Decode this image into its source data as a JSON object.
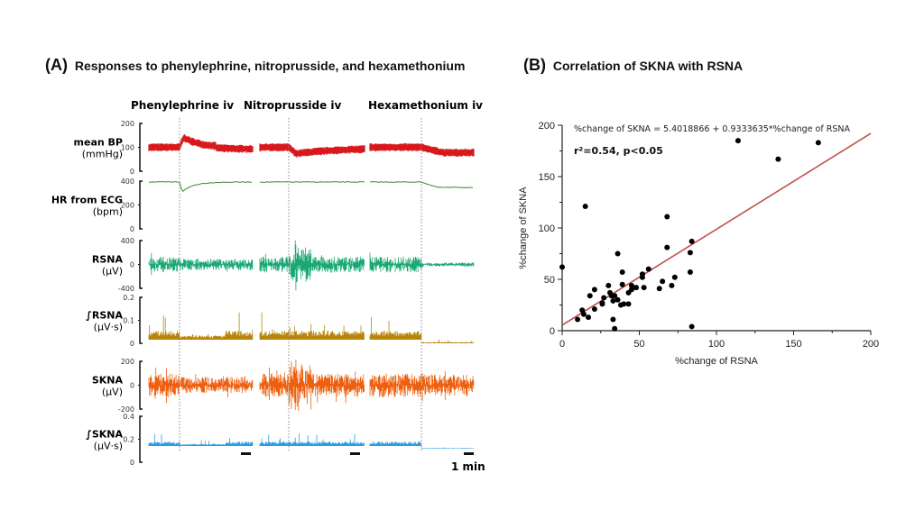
{
  "panelA": {
    "letter": "(A)",
    "title": "Responses to phenylephrine, nitroprusside, and hexamethonium",
    "conditions": [
      "Phenylephrine iv",
      "Nitroprusside iv",
      "Hexamethonium iv"
    ],
    "scale_bar_label": "1 min",
    "traces": [
      {
        "name": "mean BP",
        "unit": "(mmHg)",
        "ticks": [
          "200",
          "100",
          "0"
        ],
        "color": "#d7191c"
      },
      {
        "name": "HR from ECG",
        "unit": "(bpm)",
        "ticks": [
          "400",
          "200",
          "0"
        ],
        "color": "#3a8a2e"
      },
      {
        "name": "RSNA",
        "unit": "(µV)",
        "ticks": [
          "400",
          "0",
          "-400"
        ],
        "color": "#1aa874"
      },
      {
        "name": "∫RSNA",
        "unit": "(µV·s)",
        "ticks": [
          "0.2",
          "0.1",
          "0"
        ],
        "color": "#b8860b"
      },
      {
        "name": "SKNA",
        "unit": "(µV)",
        "ticks": [
          "200",
          "0",
          "-200"
        ],
        "color": "#ee6010"
      },
      {
        "name": "∫SKNA",
        "unit": "(µV·s)",
        "ticks": [
          "0.4",
          "0.2",
          "0"
        ],
        "color": "#2a9de0"
      }
    ]
  },
  "panelB": {
    "letter": "(B)",
    "title": "Correlation of SKNA with RSNA"
  },
  "chart_data": {
    "type": "scatter",
    "title": "Correlation of SKNA with RSNA",
    "xlabel": "%change of RSNA",
    "ylabel": "%change of SKNA",
    "xlim": [
      0,
      200
    ],
    "ylim": [
      0,
      200
    ],
    "xticks": [
      "0",
      "50",
      "100",
      "150",
      "200"
    ],
    "yticks": [
      "0",
      "50",
      "100",
      "150",
      "200"
    ],
    "regression_equation": "%change of SKNA = 5.4018866 + 0.9333635*%change of RSNA",
    "regression": {
      "intercept": 5.4018866,
      "slope": 0.9333635,
      "color": "#c0504d"
    },
    "stats_label": "r²=0.54, p<0.05",
    "point_color": "#000000",
    "points": [
      [
        0,
        62
      ],
      [
        15,
        121
      ],
      [
        114,
        185
      ],
      [
        140,
        167
      ],
      [
        166,
        183
      ],
      [
        68,
        111
      ],
      [
        84,
        87
      ],
      [
        68,
        81
      ],
      [
        83,
        76
      ],
      [
        36,
        75
      ],
      [
        83,
        57
      ],
      [
        84,
        4
      ],
      [
        10,
        11
      ],
      [
        14,
        16
      ],
      [
        13,
        20
      ],
      [
        17,
        13
      ],
      [
        18,
        34
      ],
      [
        21,
        21
      ],
      [
        21,
        40
      ],
      [
        26,
        26
      ],
      [
        27,
        32
      ],
      [
        26,
        27
      ],
      [
        31,
        37
      ],
      [
        30,
        44
      ],
      [
        32,
        34
      ],
      [
        33,
        29
      ],
      [
        34,
        34
      ],
      [
        33,
        11
      ],
      [
        34,
        2
      ],
      [
        36,
        30
      ],
      [
        38,
        25
      ],
      [
        40,
        26
      ],
      [
        39,
        45
      ],
      [
        39,
        57
      ],
      [
        43,
        26
      ],
      [
        43,
        37
      ],
      [
        45,
        44
      ],
      [
        45,
        40
      ],
      [
        48,
        42
      ],
      [
        52,
        52
      ],
      [
        52,
        55
      ],
      [
        53,
        42
      ],
      [
        56,
        60
      ],
      [
        63,
        41
      ],
      [
        65,
        48
      ],
      [
        71,
        44
      ],
      [
        73,
        52
      ]
    ]
  }
}
